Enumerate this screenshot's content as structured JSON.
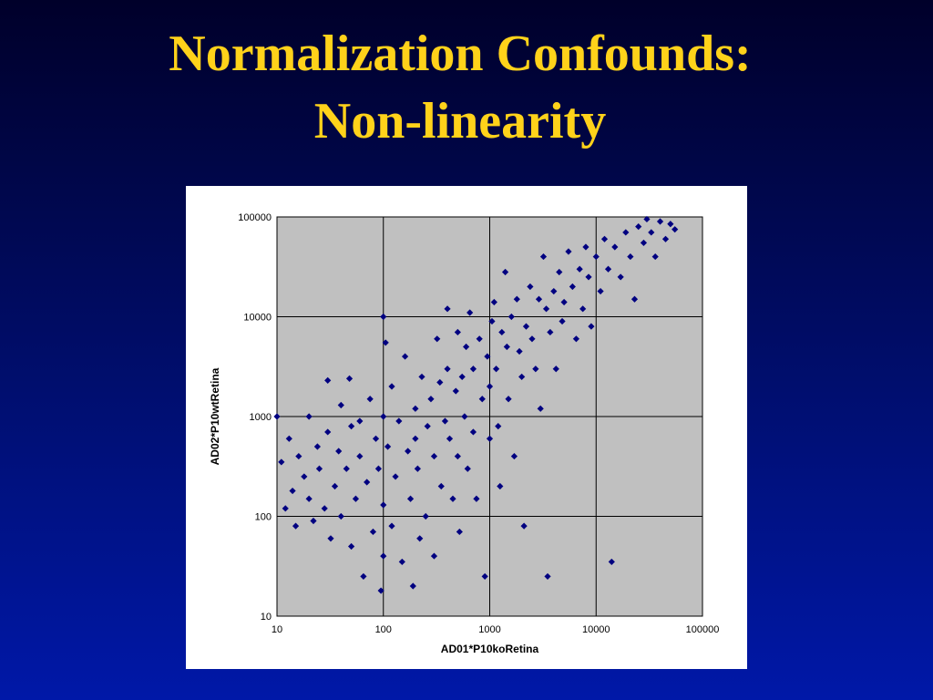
{
  "slide": {
    "title_line1": "Normalization Confounds:",
    "title_line2": "Non-linearity",
    "title_color": "#ffd21a",
    "background_top": "#00002a",
    "background_bottom": "#0018a8"
  },
  "chart_data": {
    "type": "scatter",
    "title": "",
    "xlabel": "AD01*P10koRetina",
    "ylabel": "AD02*P10wtRetina",
    "x_scale": "log",
    "y_scale": "log",
    "xlim": [
      10,
      100000
    ],
    "ylim": [
      10,
      100000
    ],
    "x_ticks": [
      "10",
      "100",
      "1000",
      "10000",
      "100000"
    ],
    "y_ticks": [
      "10",
      "100",
      "1000",
      "10000",
      "100000"
    ],
    "grid": true,
    "legend": "none",
    "plot_background": "#c0c0c0",
    "marker_color": "#000080",
    "marker": "diamond",
    "series": [
      {
        "points": [
          [
            10,
            1000
          ],
          [
            11,
            350
          ],
          [
            12,
            120
          ],
          [
            13,
            600
          ],
          [
            14,
            180
          ],
          [
            15,
            80
          ],
          [
            16,
            400
          ],
          [
            18,
            250
          ],
          [
            20,
            1000
          ],
          [
            20,
            150
          ],
          [
            22,
            90
          ],
          [
            24,
            500
          ],
          [
            25,
            300
          ],
          [
            28,
            120
          ],
          [
            30,
            2300
          ],
          [
            30,
            700
          ],
          [
            32,
            60
          ],
          [
            35,
            200
          ],
          [
            38,
            450
          ],
          [
            40,
            1300
          ],
          [
            40,
            100
          ],
          [
            45,
            300
          ],
          [
            48,
            2400
          ],
          [
            50,
            800
          ],
          [
            50,
            50
          ],
          [
            55,
            150
          ],
          [
            60,
            900
          ],
          [
            60,
            400
          ],
          [
            65,
            25
          ],
          [
            70,
            220
          ],
          [
            75,
            1500
          ],
          [
            80,
            70
          ],
          [
            85,
            600
          ],
          [
            90,
            300
          ],
          [
            95,
            18
          ],
          [
            100,
            10000
          ],
          [
            100,
            1000
          ],
          [
            100,
            130
          ],
          [
            100,
            40
          ],
          [
            105,
            5500
          ],
          [
            110,
            500
          ],
          [
            120,
            2000
          ],
          [
            120,
            80
          ],
          [
            130,
            250
          ],
          [
            140,
            900
          ],
          [
            150,
            35
          ],
          [
            160,
            4000
          ],
          [
            170,
            450
          ],
          [
            180,
            150
          ],
          [
            190,
            20
          ],
          [
            200,
            1200
          ],
          [
            200,
            600
          ],
          [
            210,
            300
          ],
          [
            220,
            60
          ],
          [
            230,
            2500
          ],
          [
            250,
            100
          ],
          [
            260,
            800
          ],
          [
            280,
            1500
          ],
          [
            300,
            400
          ],
          [
            300,
            40
          ],
          [
            320,
            6000
          ],
          [
            340,
            2200
          ],
          [
            350,
            200
          ],
          [
            380,
            900
          ],
          [
            400,
            12000
          ],
          [
            400,
            3000
          ],
          [
            420,
            600
          ],
          [
            450,
            150
          ],
          [
            480,
            1800
          ],
          [
            500,
            7000
          ],
          [
            500,
            400
          ],
          [
            520,
            70
          ],
          [
            550,
            2500
          ],
          [
            580,
            1000
          ],
          [
            600,
            5000
          ],
          [
            620,
            300
          ],
          [
            650,
            11000
          ],
          [
            700,
            3000
          ],
          [
            700,
            700
          ],
          [
            750,
            150
          ],
          [
            800,
            6000
          ],
          [
            850,
            1500
          ],
          [
            900,
            25
          ],
          [
            950,
            4000
          ],
          [
            1000,
            2000
          ],
          [
            1000,
            600
          ],
          [
            1050,
            9000
          ],
          [
            1100,
            14000
          ],
          [
            1150,
            3000
          ],
          [
            1200,
            800
          ],
          [
            1250,
            200
          ],
          [
            1300,
            7000
          ],
          [
            1400,
            28000
          ],
          [
            1450,
            5000
          ],
          [
            1500,
            1500
          ],
          [
            1600,
            10000
          ],
          [
            1700,
            400
          ],
          [
            1800,
            15000
          ],
          [
            1900,
            4500
          ],
          [
            2000,
            2500
          ],
          [
            2100,
            80
          ],
          [
            2200,
            8000
          ],
          [
            2400,
            20000
          ],
          [
            2500,
            6000
          ],
          [
            2700,
            3000
          ],
          [
            2900,
            15000
          ],
          [
            3000,
            1200
          ],
          [
            3200,
            40000
          ],
          [
            3400,
            12000
          ],
          [
            3500,
            25
          ],
          [
            3700,
            7000
          ],
          [
            4000,
            18000
          ],
          [
            4200,
            3000
          ],
          [
            4500,
            28000
          ],
          [
            4800,
            9000
          ],
          [
            5000,
            14000
          ],
          [
            5500,
            45000
          ],
          [
            6000,
            20000
          ],
          [
            6500,
            6000
          ],
          [
            7000,
            30000
          ],
          [
            7500,
            12000
          ],
          [
            8000,
            50000
          ],
          [
            8500,
            25000
          ],
          [
            9000,
            8000
          ],
          [
            10000,
            40000
          ],
          [
            11000,
            18000
          ],
          [
            12000,
            60000
          ],
          [
            13000,
            30000
          ],
          [
            14000,
            35
          ],
          [
            15000,
            50000
          ],
          [
            17000,
            25000
          ],
          [
            19000,
            70000
          ],
          [
            21000,
            40000
          ],
          [
            23000,
            15000
          ],
          [
            25000,
            80000
          ],
          [
            28000,
            55000
          ],
          [
            30000,
            95000
          ],
          [
            33000,
            70000
          ],
          [
            36000,
            40000
          ],
          [
            40000,
            90000
          ],
          [
            45000,
            60000
          ],
          [
            50000,
            85000
          ],
          [
            55000,
            75000
          ]
        ]
      }
    ]
  }
}
